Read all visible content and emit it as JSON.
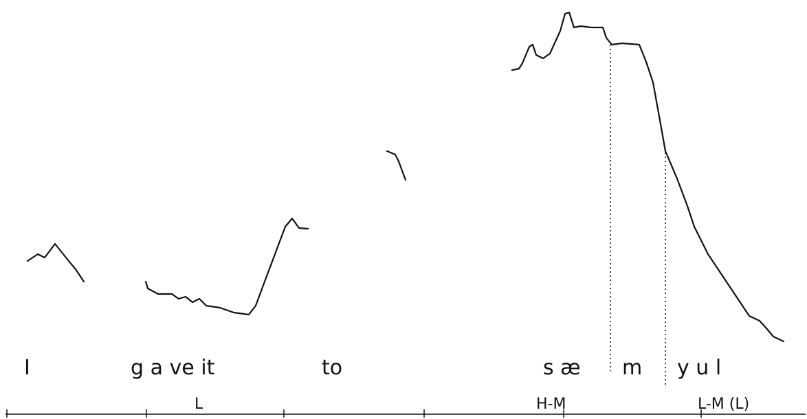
{
  "words": [
    "I",
    "g a ve it",
    "to",
    "s æ",
    "m",
    "y u l"
  ],
  "tones": [
    "L",
    "H-M",
    "L-M (L)"
  ]
}
